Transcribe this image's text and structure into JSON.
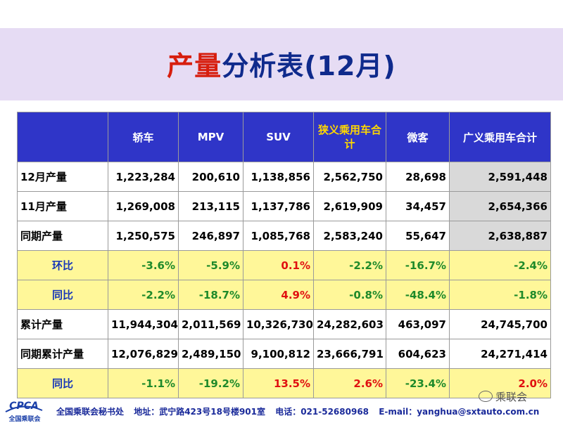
{
  "title": {
    "highlight": "产量",
    "rest": "分析表(12月)"
  },
  "table": {
    "headers": [
      "",
      "轿车",
      "MPV",
      "SUV",
      "狭义乘用车合计",
      "微客",
      "广义乘用车合计"
    ],
    "rows": [
      {
        "label": "12月产量",
        "values": [
          "1,223,284",
          "200,610",
          "1,138,856",
          "2,562,750",
          "28,698",
          "2,591,448"
        ]
      },
      {
        "label": "11月产量",
        "values": [
          "1,269,008",
          "213,115",
          "1,137,786",
          "2,619,909",
          "34,457",
          "2,654,366"
        ]
      },
      {
        "label": "同期产量",
        "values": [
          "1,250,575",
          "246,897",
          "1,085,768",
          "2,583,240",
          "55,647",
          "2,638,887"
        ]
      },
      {
        "label": "环比",
        "values": [
          "-3.6%",
          "-5.9%",
          "0.1%",
          "-2.2%",
          "-16.7%",
          "-2.4%"
        ]
      },
      {
        "label": "同比",
        "values": [
          "-2.2%",
          "-18.7%",
          "4.9%",
          "-0.8%",
          "-48.4%",
          "-1.8%"
        ]
      },
      {
        "label": "累计产量",
        "values": [
          "11,944,304",
          "2,011,569",
          "10,326,730",
          "24,282,603",
          "463,097",
          "24,745,700"
        ]
      },
      {
        "label": "同期累计产量",
        "values": [
          "12,076,829",
          "2,489,150",
          "9,100,812",
          "23,666,791",
          "604,623",
          "24,271,414"
        ]
      },
      {
        "label": "同比",
        "values": [
          "-1.1%",
          "-19.2%",
          "13.5%",
          "2.6%",
          "-23.4%",
          "2.0%"
        ]
      }
    ]
  },
  "footer": {
    "logo_text": "CPCA",
    "logo_sub": "全国乘联会",
    "org": "全国乘联会秘书处",
    "address": "地址：武宁路423号18号楼901室",
    "phone": "电话：021-52680968",
    "email": "E-mail：yanghua@sxtauto.com.cn"
  },
  "watermark": "乘联会",
  "colors": {
    "header_bg": "#2f35c8",
    "title_band": "#e6dcf4",
    "ratio_row_bg": "#fff799",
    "negative": "#1e8a2a",
    "positive": "#e01010",
    "highlight": "#d71e0e"
  }
}
